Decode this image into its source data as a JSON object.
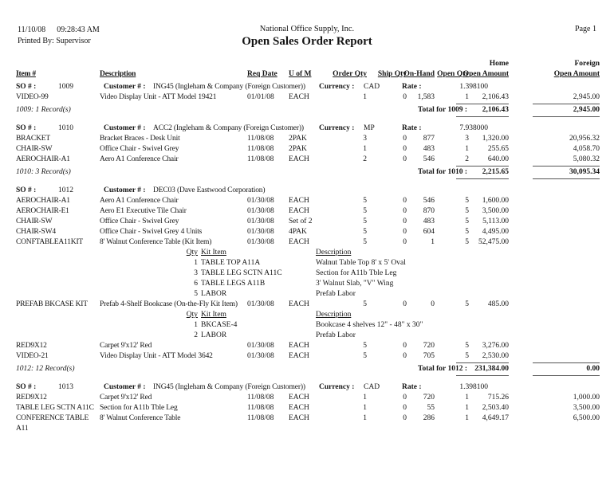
{
  "report": {
    "header": {
      "date": "11/10/08",
      "time": "09:28:43 AM",
      "printed_by": "Printed By: Supervisor",
      "company": "National Office Supply, Inc.",
      "title": "Open Sales Order Report",
      "page": "Page 1"
    },
    "columns": {
      "home": "Home",
      "foreign": "Foreign",
      "item": "Item #",
      "description": "Description",
      "req_date": "Req Date",
      "uom": "U of M",
      "order_qty": "Order Qty",
      "ship_qty": "Ship Qty",
      "on_hand": "On-Hand",
      "open_qty": "Open Qty",
      "open_amount_home": "Open Amount",
      "open_amount_foreign": "Open Amount"
    },
    "labels": {
      "so": "SO # :",
      "customer": "Customer # :",
      "currency": "Currency :",
      "rate": "Rate :",
      "kit_qty": "Qty",
      "kit_item": "Kit Item",
      "kit_description": "Description"
    },
    "groups": [
      {
        "so": "1009",
        "customer": "ING45 (Ingleham & Company (Foreign Customer))",
        "currency": "CAD",
        "rate": "1.398100",
        "rows": [
          {
            "item": "VIDEO-99",
            "desc": "Video Display Unit - ATT Model 19421",
            "date": "01/01/08",
            "uom": "EACH",
            "order": "1",
            "ship": "0",
            "onhand": "1,583",
            "open": "1",
            "home": "2,106.43",
            "foreign": "2,945.00"
          }
        ],
        "records": "1009: 1 Record(s)",
        "total": {
          "label": "Total for 1009 :",
          "home": "2,106.43",
          "foreign": "2,945.00"
        }
      },
      {
        "so": "1010",
        "customer": "ACC2 (Ingleham & Company (Foreign Customer))",
        "currency": "MP",
        "rate": "7.938000",
        "rows": [
          {
            "item": "BRACKET",
            "desc": "Bracket Braces - Desk Unit",
            "date": "11/08/08",
            "uom": "2PAK",
            "order": "3",
            "ship": "0",
            "onhand": "877",
            "open": "3",
            "home": "1,320.00",
            "foreign": "20,956.32"
          },
          {
            "item": "CHAIR-SW",
            "desc": "Office Chair - Swivel Grey",
            "date": "11/08/08",
            "uom": "2PAK",
            "order": "1",
            "ship": "0",
            "onhand": "483",
            "open": "1",
            "home": "255.65",
            "foreign": "4,058.70"
          },
          {
            "item": "AEROCHAIR-A1",
            "desc": "Aero A1 Conference Chair",
            "date": "11/08/08",
            "uom": "EACH",
            "order": "2",
            "ship": "0",
            "onhand": "546",
            "open": "2",
            "home": "640.00",
            "foreign": "5,080.32"
          }
        ],
        "records": "1010: 3 Record(s)",
        "total": {
          "label": "Total for 1010 :",
          "home": "2,215.65",
          "foreign": "30,095.34"
        }
      },
      {
        "so": "1012",
        "customer": "DEC03 (Dave Eastwood Corporation)",
        "currency": null,
        "rate": null,
        "rows": [
          {
            "item": "AEROCHAIR-A1",
            "desc": "Aero A1 Conference Chair",
            "date": "01/30/08",
            "uom": "EACH",
            "order": "5",
            "ship": "0",
            "onhand": "546",
            "open": "5",
            "home": "1,600.00",
            "foreign": null
          },
          {
            "item": "AEROCHAIR-E1",
            "desc": "Aero E1 Executive Tile Chair",
            "date": "01/30/08",
            "uom": "EACH",
            "order": "5",
            "ship": "0",
            "onhand": "870",
            "open": "5",
            "home": "3,500.00",
            "foreign": null
          },
          {
            "item": "CHAIR-SW",
            "desc": "Office Chair - Swivel Grey",
            "date": "01/30/08",
            "uom": "Set of 2",
            "order": "5",
            "ship": "0",
            "onhand": "483",
            "open": "5",
            "home": "5,113.00",
            "foreign": null
          },
          {
            "item": "CHAIR-SW4",
            "desc": "Office Chair - Swivel Grey 4 Units",
            "date": "01/30/08",
            "uom": "4PAK",
            "order": "5",
            "ship": "0",
            "onhand": "604",
            "open": "5",
            "home": "4,495.00",
            "foreign": null
          },
          {
            "item": "CONFTABLEA11KIT",
            "desc": "8' Walnut Conference Table (Kit Item)",
            "date": "01/30/08",
            "uom": "EACH",
            "order": "5",
            "ship": "0",
            "onhand": "1",
            "open": "5",
            "home": "52,475.00",
            "foreign": null,
            "kit": [
              {
                "qty": "1",
                "name": "TABLE TOP A11A",
                "desc": "Walnut Table Top 8' x 5' Oval"
              },
              {
                "qty": "3",
                "name": "TABLE LEG SCTN A11C",
                "desc": "Section for A11b Tble Leg"
              },
              {
                "qty": "6",
                "name": "TABLE LEGS A11B",
                "desc": "3' Walnut Slab, \"V\" Wing"
              },
              {
                "qty": "5",
                "name": "LABOR",
                "desc": "Prefab Labor"
              }
            ]
          },
          {
            "item": "PREFAB BKCASE KIT",
            "desc": "Prefab 4-Shelf Bookcase (On-the-Fly Kit Item)",
            "date": "01/30/08",
            "uom": "EACH",
            "order": "5",
            "ship": "0",
            "onhand": "0",
            "open": "5",
            "home": "485.00",
            "foreign": null,
            "kit": [
              {
                "qty": "1",
                "name": "BKCASE-4",
                "desc": "Bookcase 4 shelves 12\" - 48\" x 30\""
              },
              {
                "qty": "2",
                "name": "LABOR",
                "desc": "Prefab Labor"
              }
            ]
          },
          {
            "item": "RED9X12",
            "desc": "Carpet 9'x12' Red",
            "date": "01/30/08",
            "uom": "EACH",
            "order": "5",
            "ship": "0",
            "onhand": "720",
            "open": "5",
            "home": "3,276.00",
            "foreign": null
          },
          {
            "item": "VIDEO-21",
            "desc": "Video Display Unit - ATT Model 3642",
            "date": "01/30/08",
            "uom": "EACH",
            "order": "5",
            "ship": "0",
            "onhand": "705",
            "open": "5",
            "home": "2,530.00",
            "foreign": null
          }
        ],
        "records": "1012: 12 Record(s)",
        "total": {
          "label": "Total for 1012 :",
          "home": "231,384.00",
          "foreign": "0.00"
        }
      },
      {
        "so": "1013",
        "customer": "ING45 (Ingleham & Company (Foreign Customer))",
        "currency": "CAD",
        "rate": "1.398100",
        "rows": [
          {
            "item": "RED9X12",
            "desc": "Carpet 9'x12' Red",
            "date": "11/08/08",
            "uom": "EACH",
            "order": "1",
            "ship": "0",
            "onhand": "720",
            "open": "1",
            "home": "715.26",
            "foreign": "1,000.00"
          },
          {
            "item": "TABLE LEG SCTN A11C",
            "desc": "Section for A11b Tble Leg",
            "date": "11/08/08",
            "uom": "EACH",
            "order": "1",
            "ship": "0",
            "onhand": "55",
            "open": "1",
            "home": "2,503.40",
            "foreign": "3,500.00"
          },
          {
            "item": "CONFERENCE TABLE A11",
            "desc": "8' Walnut Conference Table",
            "date": "11/08/08",
            "uom": "EACH",
            "order": "1",
            "ship": "0",
            "onhand": "286",
            "open": "1",
            "home": "4,649.17",
            "foreign": "6,500.00"
          }
        ],
        "records": null,
        "total": null
      }
    ]
  }
}
